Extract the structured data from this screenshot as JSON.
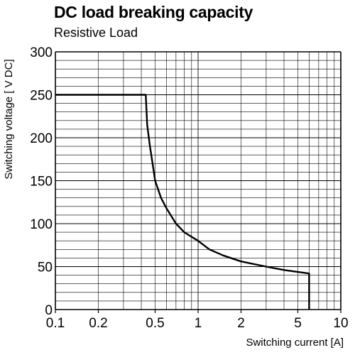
{
  "chart_data": {
    "type": "line",
    "title": "DC load breaking capacity",
    "subtitle": "Resistive Load",
    "xlabel": "Switching current [A]",
    "ylabel": "Switching voltage [ V DC]",
    "x_scale": "log",
    "xlim": [
      0.1,
      10
    ],
    "ylim": [
      0,
      300
    ],
    "grid": true,
    "x_ticks": [
      {
        "value": 0.1,
        "label": "0.1"
      },
      {
        "value": 0.2,
        "label": "0.2"
      },
      {
        "value": 0.5,
        "label": "0.5"
      },
      {
        "value": 1,
        "label": "1"
      },
      {
        "value": 2,
        "label": "2"
      },
      {
        "value": 5,
        "label": "5"
      },
      {
        "value": 10,
        "label": "10"
      }
    ],
    "y_ticks": [
      {
        "value": 0,
        "label": "0"
      },
      {
        "value": 50,
        "label": "50"
      },
      {
        "value": 100,
        "label": "100"
      },
      {
        "value": 150,
        "label": "150"
      },
      {
        "value": 200,
        "label": "200"
      },
      {
        "value": 250,
        "label": "250"
      },
      {
        "value": 300,
        "label": "300"
      }
    ],
    "series": [
      {
        "x": [
          0.1,
          0.43,
          0.44,
          0.46,
          0.48,
          0.5,
          0.55,
          0.6,
          0.7,
          0.8,
          1.0,
          1.2,
          1.5,
          2.0,
          3.0,
          4.0,
          6.0,
          6.0
        ],
        "y": [
          250,
          250,
          215,
          190,
          170,
          150,
          130,
          118,
          100,
          90,
          80,
          70,
          63,
          56,
          50,
          46,
          42,
          0
        ]
      }
    ]
  }
}
